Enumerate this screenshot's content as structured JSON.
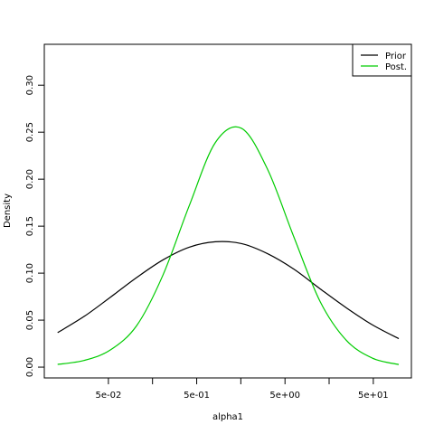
{
  "chart_data": {
    "type": "line",
    "title": "",
    "xlabel": "alpha1",
    "ylabel": "Density",
    "x_scale": "log10",
    "xlim": [
      0.0094,
      135
    ],
    "ylim": [
      -0.0115,
      0.3435
    ],
    "x_ticks": [
      {
        "value": 0.05,
        "label": "5e-02"
      },
      {
        "value": 0.158,
        "label": ""
      },
      {
        "value": 0.5,
        "label": "5e-01"
      },
      {
        "value": 1.58,
        "label": ""
      },
      {
        "value": 5,
        "label": "5e+00"
      },
      {
        "value": 15.8,
        "label": ""
      },
      {
        "value": 50,
        "label": "5e+01"
      }
    ],
    "y_ticks": [
      {
        "value": 0.0,
        "label": "0.00"
      },
      {
        "value": 0.05,
        "label": "0.05"
      },
      {
        "value": 0.1,
        "label": "0.10"
      },
      {
        "value": 0.15,
        "label": "0.15"
      },
      {
        "value": 0.2,
        "label": "0.20"
      },
      {
        "value": 0.25,
        "label": "0.25"
      },
      {
        "value": 0.3,
        "label": "0.30"
      }
    ],
    "legend": {
      "placement": "top-right"
    },
    "series": [
      {
        "name": "Prior",
        "color": "#000000",
        "x": [
          0.0133,
          0.0267,
          0.0529,
          0.1048,
          0.2075,
          0.4109,
          0.8136,
          1.611,
          3.19,
          6.317,
          12.51,
          24.77,
          49.04,
          97.1
        ],
        "y": [
          0.0367,
          0.0541,
          0.0745,
          0.0954,
          0.1141,
          0.1276,
          0.1334,
          0.1314,
          0.1206,
          0.1042,
          0.0833,
          0.0631,
          0.0449,
          0.0303
        ]
      },
      {
        "name": "Post.",
        "color": "#00cc00",
        "x": [
          0.0133,
          0.0267,
          0.0529,
          0.1048,
          0.2075,
          0.4109,
          0.8136,
          1.611,
          3.19,
          6.317,
          12.51,
          24.77,
          49.04,
          97.1
        ],
        "y": [
          0.0029,
          0.0072,
          0.0184,
          0.0443,
          0.098,
          0.1716,
          0.239,
          0.2541,
          0.21,
          0.1382,
          0.0697,
          0.0285,
          0.0095,
          0.0028
        ]
      }
    ]
  }
}
